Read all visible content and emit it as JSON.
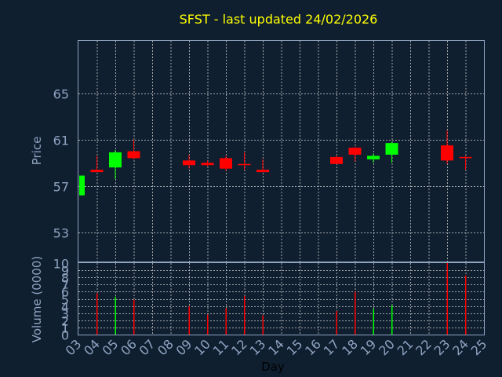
{
  "chart_data": {
    "type": "candlestick",
    "title": "SFST - last updated 24/02/2026",
    "xlabel": "Day",
    "x_ticks": [
      "03",
      "04",
      "05",
      "06",
      "07",
      "08",
      "09",
      "10",
      "11",
      "12",
      "13",
      "14",
      "15",
      "16",
      "17",
      "18",
      "19",
      "20",
      "21",
      "22",
      "23",
      "24",
      "25"
    ],
    "colors": {
      "up": "#00ff00",
      "down": "#ff0000",
      "background": "#0f1f30",
      "axis": "#8fa3c0",
      "title": "#ffff00"
    },
    "price_panel": {
      "ylabel": "Price",
      "ylim": [
        50.5,
        69.5
      ],
      "y_ticks": [
        53,
        57,
        61,
        65
      ],
      "candles": [
        {
          "day": "03",
          "open": 56.2,
          "high": 57.9,
          "low": 56.2,
          "close": 57.9
        },
        {
          "day": "04",
          "open": 58.4,
          "high": 59.6,
          "low": 58.2,
          "close": 58.2
        },
        {
          "day": "05",
          "open": 58.6,
          "high": 60.1,
          "low": 57.6,
          "close": 59.9
        },
        {
          "day": "06",
          "open": 60.0,
          "high": 61.0,
          "low": 59.3,
          "close": 59.4
        },
        {
          "day": "09",
          "open": 59.2,
          "high": 59.7,
          "low": 58.5,
          "close": 58.8
        },
        {
          "day": "10",
          "open": 59.0,
          "high": 59.2,
          "low": 58.7,
          "close": 58.8
        },
        {
          "day": "11",
          "open": 59.4,
          "high": 59.6,
          "low": 58.3,
          "close": 58.5
        },
        {
          "day": "12",
          "open": 58.9,
          "high": 59.9,
          "low": 58.4,
          "close": 58.8
        },
        {
          "day": "13",
          "open": 58.4,
          "high": 59.3,
          "low": 58.2,
          "close": 58.2
        },
        {
          "day": "17",
          "open": 59.5,
          "high": 59.6,
          "low": 58.9,
          "close": 58.9
        },
        {
          "day": "18",
          "open": 60.3,
          "high": 60.4,
          "low": 59.1,
          "close": 59.7
        },
        {
          "day": "19",
          "open": 59.3,
          "high": 59.8,
          "low": 59.0,
          "close": 59.6
        },
        {
          "day": "20",
          "open": 59.7,
          "high": 60.8,
          "low": 59.0,
          "close": 60.7
        },
        {
          "day": "23",
          "open": 60.5,
          "high": 61.8,
          "low": 58.9,
          "close": 59.2
        },
        {
          "day": "24",
          "open": 59.5,
          "high": 59.6,
          "low": 58.4,
          "close": 59.4
        }
      ]
    },
    "volume_panel": {
      "ylabel": "Volume (0000)",
      "ylim": [
        0,
        10
      ],
      "y_ticks": [
        0,
        1,
        2,
        3,
        4,
        5,
        6,
        7,
        8,
        9,
        10
      ],
      "bars": [
        {
          "day": "04",
          "value": 5.8,
          "direction": "down"
        },
        {
          "day": "05",
          "value": 5.3,
          "direction": "up"
        },
        {
          "day": "06",
          "value": 4.9,
          "direction": "down"
        },
        {
          "day": "09",
          "value": 4.0,
          "direction": "down"
        },
        {
          "day": "10",
          "value": 2.8,
          "direction": "down"
        },
        {
          "day": "11",
          "value": 3.7,
          "direction": "down"
        },
        {
          "day": "12",
          "value": 5.4,
          "direction": "down"
        },
        {
          "day": "13",
          "value": 2.7,
          "direction": "down"
        },
        {
          "day": "17",
          "value": 3.3,
          "direction": "down"
        },
        {
          "day": "18",
          "value": 6.0,
          "direction": "down"
        },
        {
          "day": "19",
          "value": 3.6,
          "direction": "up"
        },
        {
          "day": "20",
          "value": 4.1,
          "direction": "up"
        },
        {
          "day": "23",
          "value": 10.0,
          "direction": "down"
        },
        {
          "day": "24",
          "value": 8.3,
          "direction": "down"
        }
      ]
    }
  }
}
